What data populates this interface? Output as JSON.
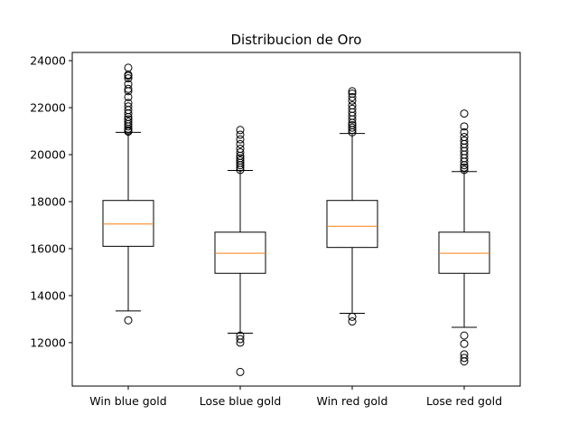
{
  "chart_data": {
    "type": "box",
    "title": "Distribucion de Oro",
    "xlabel": "",
    "ylabel": "",
    "ylim": [
      10150,
      24350
    ],
    "yticks": [
      12000,
      14000,
      16000,
      18000,
      20000,
      22000,
      24000
    ],
    "ytick_labels": [
      "12000",
      "14000",
      "16000",
      "18000",
      "20000",
      "22000",
      "24000"
    ],
    "grid": false,
    "categories": [
      "Win blue gold",
      "Lose blue gold",
      "Win red gold",
      "Lose red gold"
    ],
    "series": [
      {
        "name": "Win blue gold",
        "whisker_low": 13350,
        "q1": 16100,
        "median": 17050,
        "q3": 18050,
        "whisker_high": 20950,
        "outliers": [
          12950,
          20980,
          21030,
          21100,
          21200,
          21300,
          21400,
          21500,
          21600,
          21750,
          21900,
          22050,
          22200,
          22450,
          22700,
          22800,
          23000,
          23250,
          23350,
          23400,
          23700
        ]
      },
      {
        "name": "Lose blue gold",
        "whisker_low": 12400,
        "q1": 14950,
        "median": 15800,
        "q3": 16700,
        "whisker_high": 19330,
        "outliers": [
          10750,
          12000,
          12150,
          12300,
          19350,
          19450,
          19550,
          19650,
          19750,
          19850,
          19950,
          20100,
          20250,
          20450,
          20650,
          20850,
          21050
        ]
      },
      {
        "name": "Win red gold",
        "whisker_low": 13250,
        "q1": 16050,
        "median": 16950,
        "q3": 18050,
        "whisker_high": 20900,
        "outliers": [
          12900,
          13100,
          20950,
          21050,
          21150,
          21250,
          21350,
          21500,
          21650,
          21800,
          21950,
          22100,
          22300,
          22450,
          22600,
          22700
        ]
      },
      {
        "name": "Lose red gold",
        "whisker_low": 12650,
        "q1": 14950,
        "median": 15800,
        "q3": 16700,
        "whisker_high": 19280,
        "outliers": [
          11200,
          11350,
          11500,
          11950,
          12300,
          19350,
          19450,
          19550,
          19700,
          19850,
          20000,
          20150,
          20300,
          20450,
          20600,
          20750,
          20950,
          21200,
          21750
        ]
      }
    ],
    "colors": {
      "box": "#000000",
      "median": "#ff7f0e",
      "frame": "#000000",
      "background": "#ffffff"
    }
  }
}
